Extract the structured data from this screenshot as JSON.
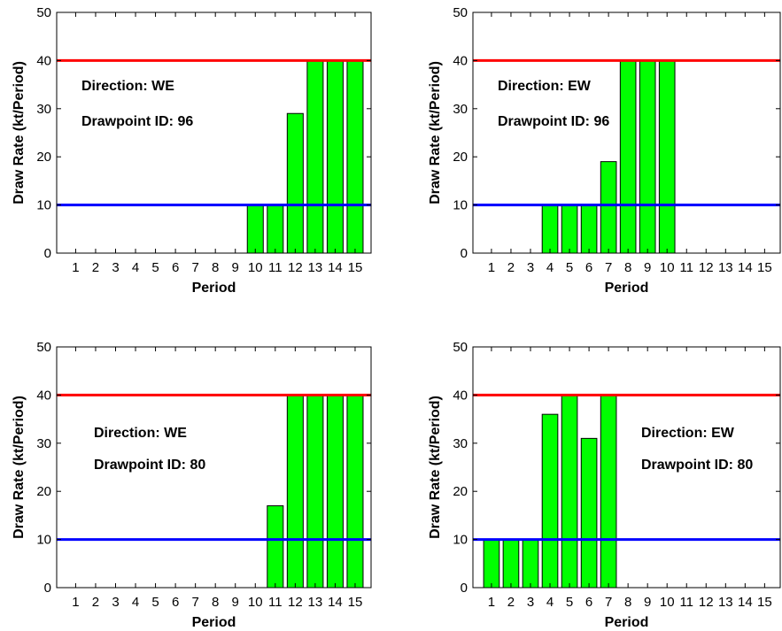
{
  "chart_data": [
    {
      "type": "bar",
      "panel": "top-left",
      "categories": [
        "1",
        "2",
        "3",
        "4",
        "5",
        "6",
        "7",
        "8",
        "9",
        "10",
        "11",
        "12",
        "13",
        "14",
        "15"
      ],
      "values": [
        0,
        0,
        0,
        0,
        0,
        0,
        0,
        0,
        0,
        10,
        10,
        29,
        40,
        40,
        40
      ],
      "xlabel": "Period",
      "ylabel": "Draw Rate (kt/Period)",
      "ylim": [
        0,
        50
      ],
      "yticks": [
        "0",
        "10",
        "20",
        "30",
        "40",
        "50"
      ],
      "bar_color": "#00ff00",
      "reference_lines": [
        {
          "value": 40,
          "color": "#ff0000"
        },
        {
          "value": 10,
          "color": "#0000ff"
        }
      ],
      "annotations": [
        "Direction: WE",
        "Drawpoint ID: 96"
      ],
      "annotation_position": "upper-left"
    },
    {
      "type": "bar",
      "panel": "top-right",
      "categories": [
        "1",
        "2",
        "3",
        "4",
        "5",
        "6",
        "7",
        "8",
        "9",
        "10",
        "11",
        "12",
        "13",
        "14",
        "15"
      ],
      "values": [
        0,
        0,
        0,
        10,
        10,
        10,
        19,
        40,
        40,
        40,
        0,
        0,
        0,
        0,
        0
      ],
      "xlabel": "Period",
      "ylabel": "Draw Rate (kt/Period)",
      "ylim": [
        0,
        50
      ],
      "yticks": [
        "0",
        "10",
        "20",
        "30",
        "40",
        "50"
      ],
      "bar_color": "#00ff00",
      "reference_lines": [
        {
          "value": 40,
          "color": "#ff0000"
        },
        {
          "value": 10,
          "color": "#0000ff"
        }
      ],
      "annotations": [
        "Direction: EW",
        "Drawpoint ID: 96"
      ],
      "annotation_position": "upper-left"
    },
    {
      "type": "bar",
      "panel": "bottom-left",
      "categories": [
        "1",
        "2",
        "3",
        "4",
        "5",
        "6",
        "7",
        "8",
        "9",
        "10",
        "11",
        "12",
        "13",
        "14",
        "15"
      ],
      "values": [
        0,
        0,
        0,
        0,
        0,
        0,
        0,
        0,
        0,
        0,
        17,
        40,
        40,
        40,
        40
      ],
      "xlabel": "Period",
      "ylabel": "Draw Rate (kt/Period)",
      "ylim": [
        0,
        50
      ],
      "yticks": [
        "0",
        "10",
        "20",
        "30",
        "40",
        "50"
      ],
      "bar_color": "#00ff00",
      "reference_lines": [
        {
          "value": 40,
          "color": "#ff0000"
        },
        {
          "value": 10,
          "color": "#0000ff"
        }
      ],
      "annotations": [
        "Direction: WE",
        "Drawpoint ID: 80"
      ],
      "annotation_position": "center-left"
    },
    {
      "type": "bar",
      "panel": "bottom-right",
      "categories": [
        "1",
        "2",
        "3",
        "4",
        "5",
        "6",
        "7",
        "8",
        "9",
        "10",
        "11",
        "12",
        "13",
        "14",
        "15"
      ],
      "values": [
        10,
        10,
        10,
        36,
        40,
        31,
        40,
        0,
        0,
        0,
        0,
        0,
        0,
        0,
        0
      ],
      "xlabel": "Period",
      "ylabel": "Draw Rate (kt/Period)",
      "ylim": [
        0,
        50
      ],
      "yticks": [
        "0",
        "10",
        "20",
        "30",
        "40",
        "50"
      ],
      "bar_color": "#00ff00",
      "reference_lines": [
        {
          "value": 40,
          "color": "#ff0000"
        },
        {
          "value": 10,
          "color": "#0000ff"
        }
      ],
      "annotations": [
        "Direction: EW",
        "Drawpoint ID: 80"
      ],
      "annotation_position": "center-right"
    }
  ]
}
